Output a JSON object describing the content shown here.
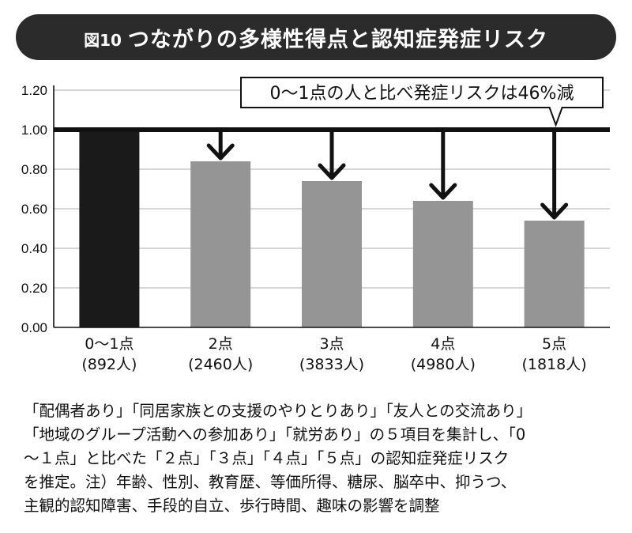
{
  "header": {
    "figure_label": "図10",
    "title": "つながりの多様性得点と認知症発症リスク"
  },
  "callout": "0〜1点の人と比べ発症リスクは46%減",
  "chart_data": {
    "type": "bar",
    "categories": [
      "0〜1点",
      "2点",
      "3点",
      "4点",
      "5点"
    ],
    "sublabels": [
      "(892人)",
      "(2460人)",
      "(3833人)",
      "(4980人)",
      "(1818人)"
    ],
    "values": [
      1.0,
      0.84,
      0.74,
      0.64,
      0.54
    ],
    "reference_line": 1.0,
    "ylim": [
      0,
      1.2
    ],
    "yticks": [
      "0.00",
      "0.20",
      "0.40",
      "0.60",
      "0.80",
      "1.00",
      "1.20"
    ],
    "grid": true,
    "colors": {
      "first_bar": "#1a1a1a",
      "other_bars": "#959595",
      "grid": "#bdbdbd"
    }
  },
  "note_lines": [
    "「配偶者あり」「同居家族との支援のやりとりあり」「友人との交流あり」",
    "「地域のグループ活動への参加あり」「就労あり」の５項目を集計し、「0",
    "〜１点」と比べた「２点」「３点」「４点」「５点」の認知症発症リスク",
    "を推定。注）年齢、性別、教育歴、等価所得、糖尿、脳卒中、抑うつ、",
    "主観的認知障害、手段的自立、歩行時間、趣味の影響を調整"
  ]
}
